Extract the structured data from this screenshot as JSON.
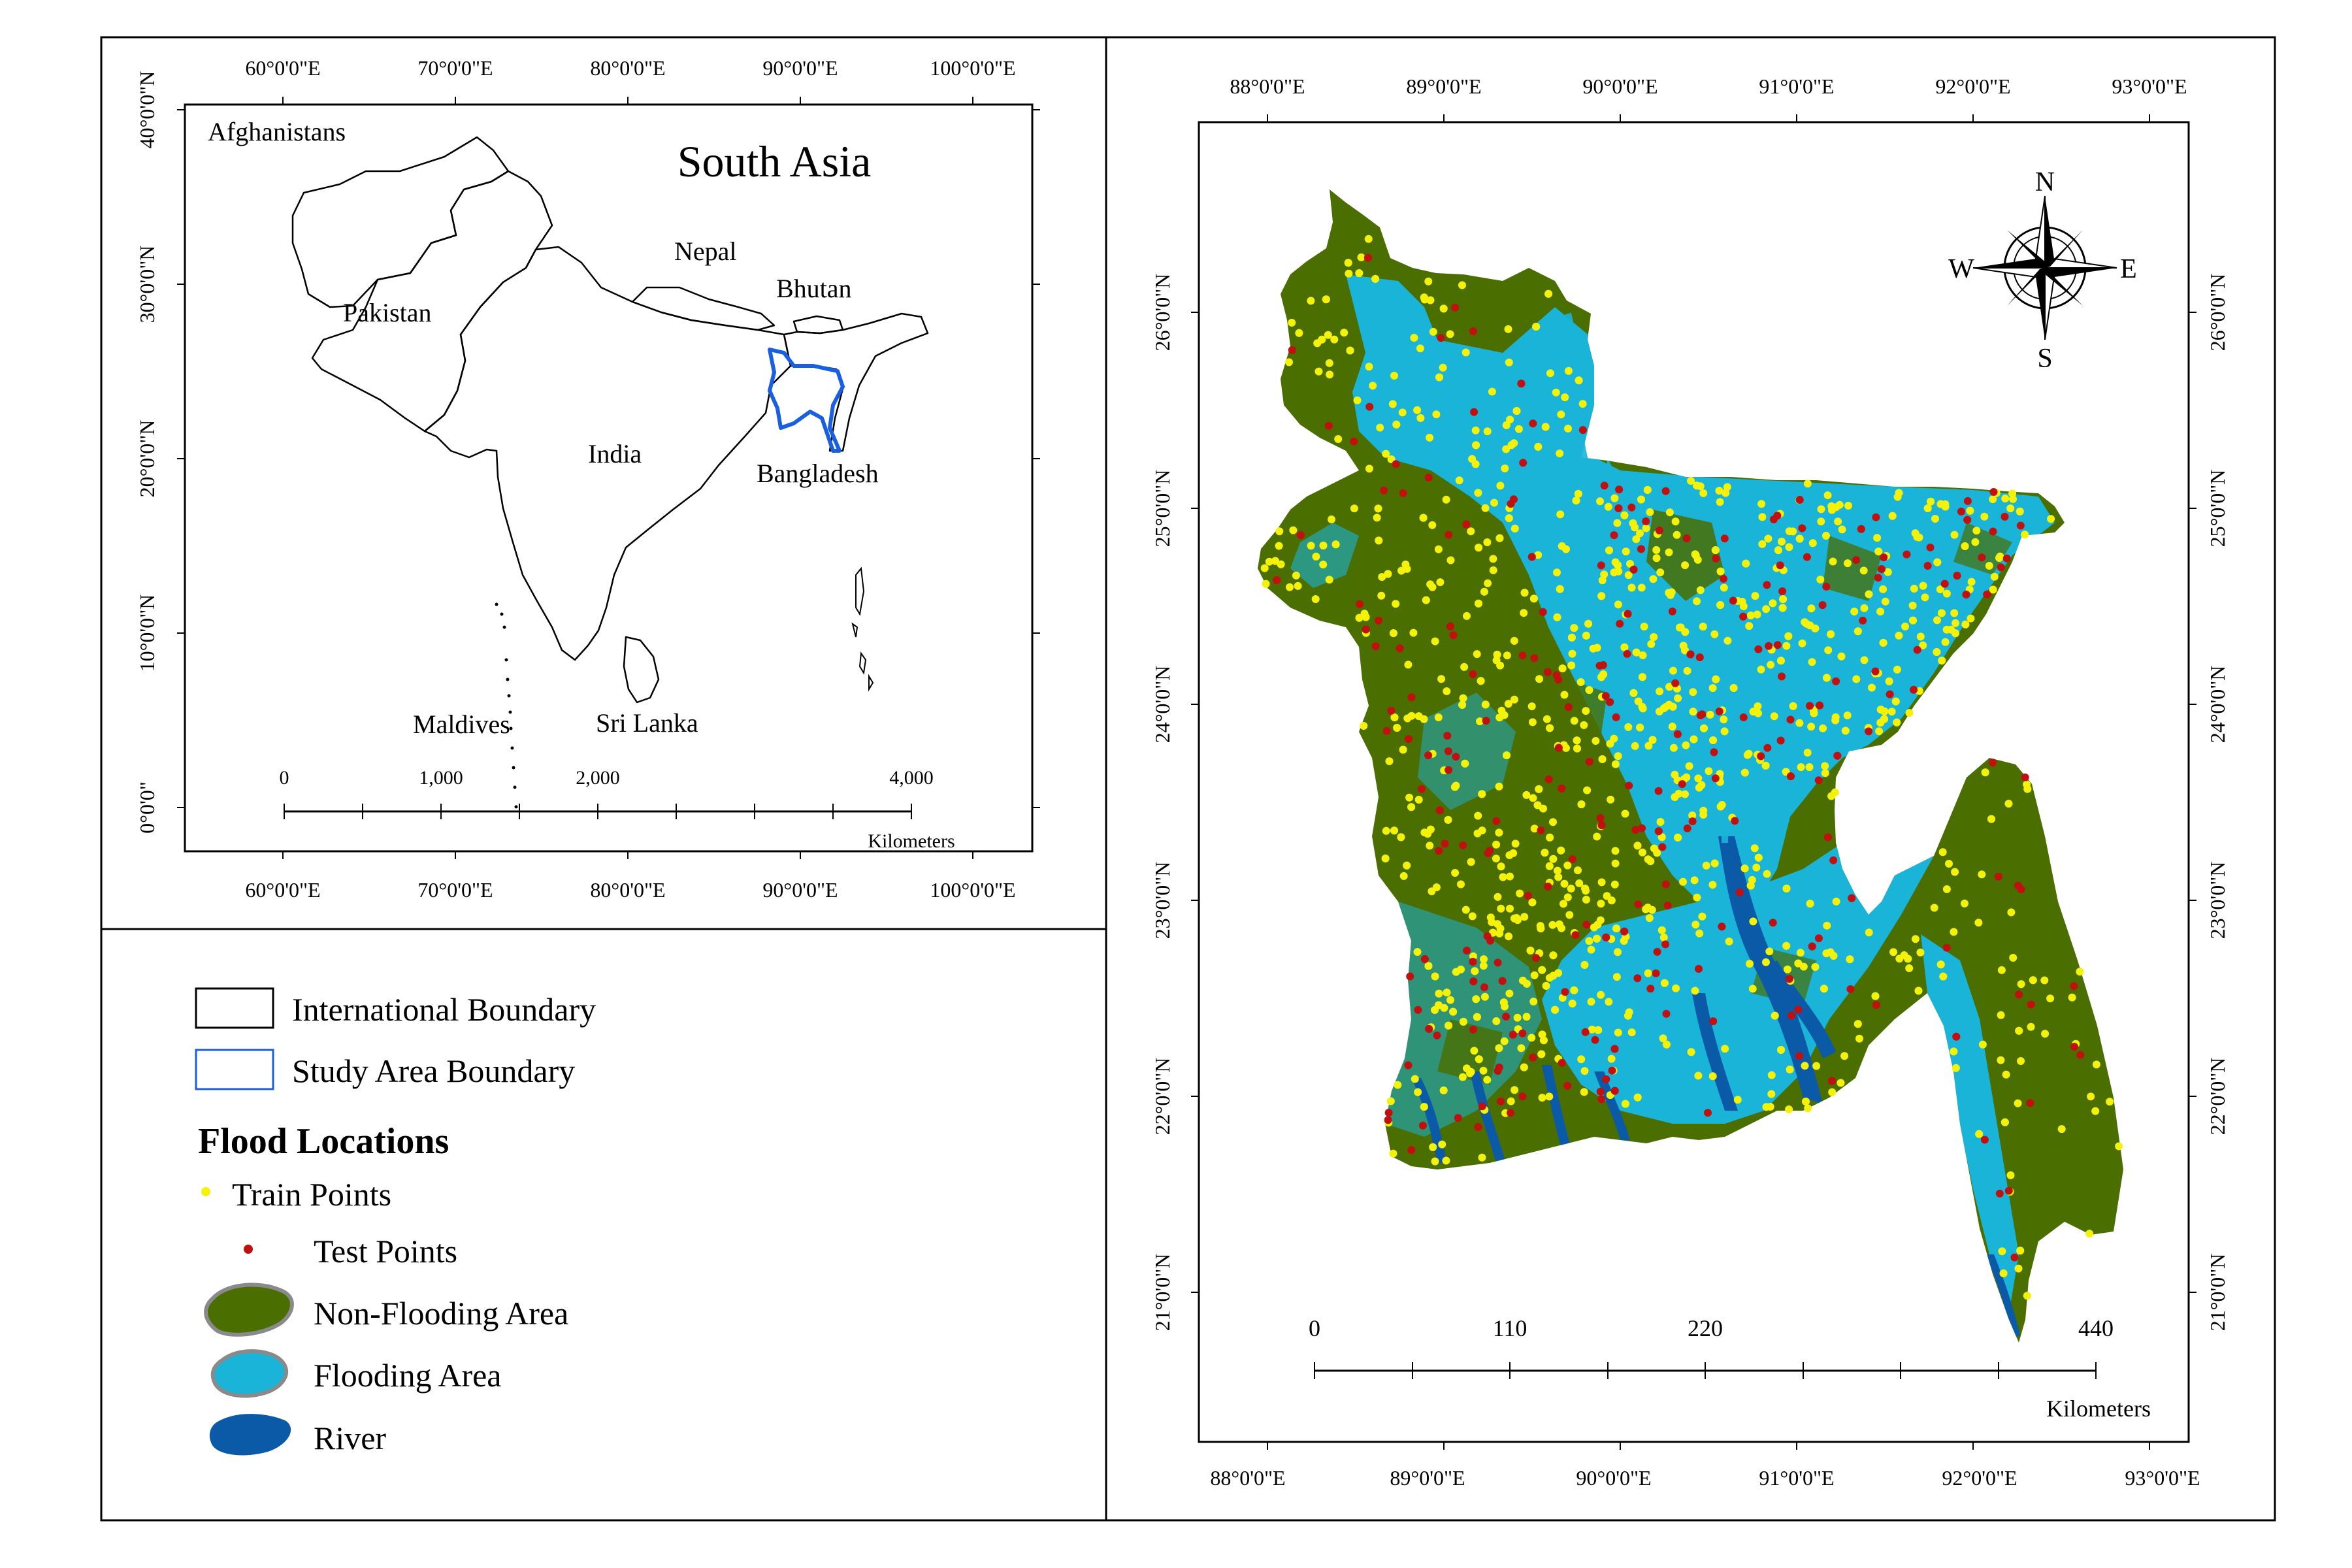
{
  "inset_map": {
    "top_axis_labels": [
      "60°0'0\"E",
      "70°0'0\"E",
      "80°0'0\"E",
      "90°0'0\"E",
      "100°0'0\"E"
    ],
    "bottom_axis_labels": [
      "60°0'0\"E",
      "70°0'0\"E",
      "80°0'0\"E",
      "90°0'0\"E",
      "100°0'0\"E"
    ],
    "left_axis_labels": [
      "40°0'0\"N",
      "30°0'0\"N",
      "20°0'0\"N",
      "10°0'0\"N",
      "0°0'0\""
    ],
    "title": "South Asia",
    "country_labels": {
      "afghanistan": "Afghanistans",
      "pakistan": "Pakistan",
      "nepal": "Nepal",
      "bhutan": "Bhutan",
      "india": "India",
      "bangladesh": "Bangladesh",
      "maldives": "Maldives",
      "sri_lanka": "Sri Lanka"
    },
    "scale_bar": {
      "ticks": [
        "0",
        "1,000",
        "2,000",
        "4,000"
      ],
      "unit": "Kilometers"
    }
  },
  "legend": {
    "international_boundary": "International Boundary",
    "study_area_boundary": "Study Area Boundary",
    "heading": "Flood Locations",
    "train_points": "Train Points",
    "test_points": "Test Points",
    "non_flooding_area": "Non-Flooding Area",
    "flooding_area": "Flooding Area",
    "river": "River"
  },
  "main_map": {
    "top_axis_labels": [
      "88°0'0\"E",
      "89°0'0\"E",
      "90°0'0\"E",
      "91°0'0\"E",
      "92°0'0\"E",
      "93°0'0\"E"
    ],
    "bottom_axis_labels": [
      "88°0'0\"E",
      "89°0'0\"E",
      "90°0'0\"E",
      "91°0'0\"E",
      "92°0'0\"E",
      "93°0'0\"E"
    ],
    "left_axis_labels": [
      "26°0'0\"N",
      "25°0'0\"N",
      "24°0'0\"N",
      "23°0'0\"N",
      "22°0'0\"N",
      "21°0'0\"N"
    ],
    "right_axis_labels": [
      "26°0'0\"N",
      "25°0'0\"N",
      "24°0'0\"N",
      "23°0'0\"N",
      "22°0'0\"N",
      "21°0'0\"N"
    ],
    "scale_bar": {
      "ticks": [
        "0",
        "110",
        "220",
        "440"
      ],
      "unit": "Kilometers"
    },
    "north_arrow": {
      "n": "N",
      "s": "S",
      "e": "E",
      "w": "W"
    }
  },
  "colors": {
    "non_flooding": "#4a6e00",
    "flooding": "#1ab4d8",
    "river": "#0a5aa8",
    "train_point": "#f5f20a",
    "test_point": "#c01010",
    "study_boundary": "#1a5fe0"
  },
  "icons": [
    "north-arrow-icon",
    "train-point-icon",
    "test-point-icon",
    "non-flooding-swatch-icon",
    "flooding-swatch-icon",
    "river-swatch-icon"
  ]
}
